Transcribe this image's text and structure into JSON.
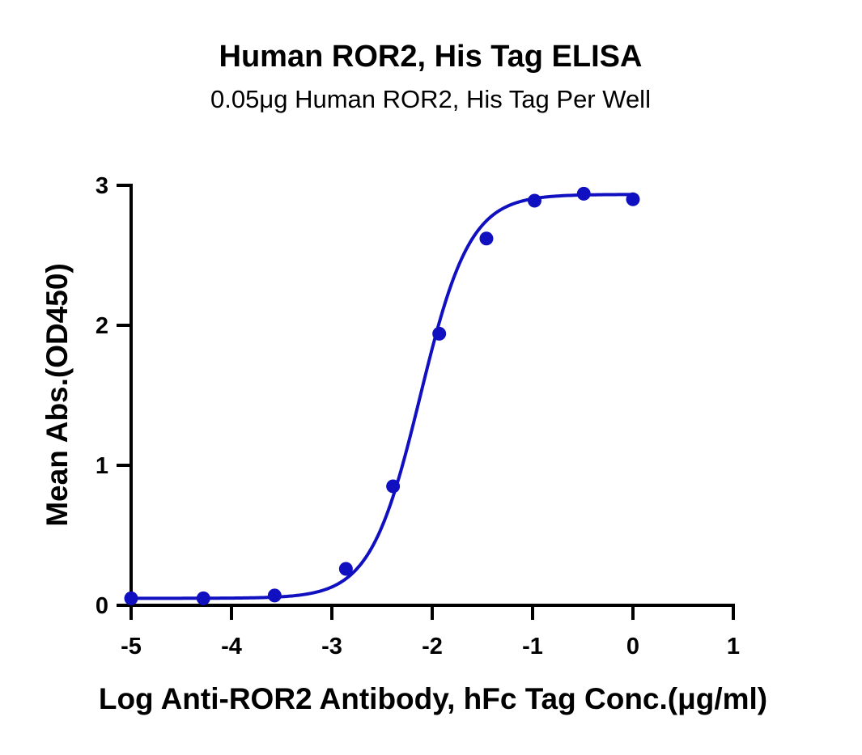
{
  "chart_data": {
    "type": "scatter",
    "title": "Human ROR2, His Tag ELISA",
    "subtitle": "0.05μg Human ROR2, His Tag Per Well",
    "xlabel": "Log Anti-ROR2 Antibody, hFc Tag Conc.(μg/ml)",
    "ylabel": "Mean Abs.(OD450)",
    "xlim": [
      -5,
      1
    ],
    "ylim": [
      0,
      3
    ],
    "x_ticks": [
      -5,
      -4,
      -3,
      -2,
      -1,
      0,
      1
    ],
    "y_ticks": [
      0,
      1,
      2,
      3
    ],
    "grid": false,
    "series": [
      {
        "color": "#1010c0",
        "x": [
          -5.0,
          -4.28,
          -3.57,
          -2.86,
          -2.39,
          -1.93,
          -1.46,
          -0.98,
          -0.49,
          0.0
        ],
        "y": [
          0.05,
          0.05,
          0.07,
          0.26,
          0.85,
          1.94,
          2.62,
          2.89,
          2.94,
          2.9
        ]
      }
    ],
    "fit_curve": {
      "model": "4PL",
      "bottom": 0.05,
      "top": 2.935,
      "log_ec50": -2.12,
      "hill_slope": 1.75,
      "color": "#1010c0"
    }
  }
}
